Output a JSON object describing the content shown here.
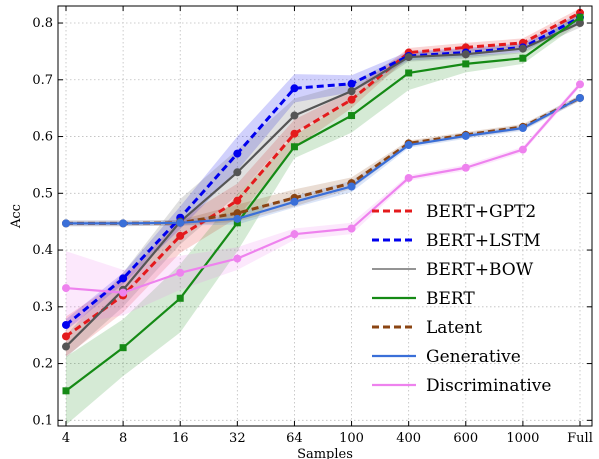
{
  "chart_data": {
    "type": "line",
    "xlabel": "Samples",
    "ylabel": "Acc",
    "categories": [
      "4",
      "8",
      "16",
      "32",
      "64",
      "100",
      "400",
      "600",
      "1000",
      "Full"
    ],
    "yticks": [
      0.1,
      0.2,
      0.3,
      0.4,
      0.5,
      0.6,
      0.7,
      0.8
    ],
    "ylim": [
      0.09,
      0.83
    ],
    "grid": true,
    "legend_position": "bottom-right",
    "series": [
      {
        "name": "BERT+GPT2",
        "color": "#e41a1c",
        "dash": "dashed",
        "marker": "circle",
        "values": [
          0.248,
          0.32,
          0.425,
          0.487,
          0.605,
          0.665,
          0.748,
          0.757,
          0.765,
          0.818
        ],
        "band": [
          0.035,
          0.03,
          0.03,
          0.03,
          0.025,
          0.015,
          0.008,
          0.008,
          0.008,
          0.008
        ]
      },
      {
        "name": "BERT+LSTM",
        "color": "#0000ee",
        "dash": "dashed",
        "marker": "circle",
        "values": [
          0.268,
          0.35,
          0.457,
          0.57,
          0.685,
          0.693,
          0.742,
          0.748,
          0.757,
          0.81
        ],
        "band": [
          0.01,
          0.01,
          0.02,
          0.03,
          0.025,
          0.015,
          0.008,
          0.008,
          0.008,
          0.008
        ]
      },
      {
        "name": "BERT+BOW",
        "color": "#555555",
        "dash": "solid",
        "marker": "circle",
        "values": [
          0.23,
          0.33,
          0.45,
          0.537,
          0.637,
          0.68,
          0.74,
          0.745,
          0.755,
          0.8
        ],
        "band": [
          0.02,
          0.03,
          0.04,
          0.04,
          0.03,
          0.015,
          0.008,
          0.008,
          0.008,
          0.008
        ]
      },
      {
        "name": "BERT",
        "color": "#158a15",
        "dash": "solid",
        "marker": "square",
        "values": [
          0.152,
          0.228,
          0.315,
          0.448,
          0.582,
          0.637,
          0.712,
          0.728,
          0.738,
          0.81
        ],
        "band": [
          0.06,
          0.05,
          0.06,
          0.05,
          0.02,
          0.03,
          0.03,
          0.015,
          0.01,
          0.01
        ]
      },
      {
        "name": "Latent",
        "color": "#8b4513",
        "dash": "dashed",
        "marker": "circle",
        "values": [
          0.447,
          0.447,
          0.448,
          0.465,
          0.492,
          0.518,
          0.588,
          0.603,
          0.617,
          0.668
        ],
        "band": [
          0.005,
          0.005,
          0.005,
          0.015,
          0.015,
          0.01,
          0.005,
          0.005,
          0.005,
          0.005
        ]
      },
      {
        "name": "Generative",
        "color": "#3a6fd8",
        "dash": "solid",
        "marker": "circle",
        "values": [
          0.447,
          0.447,
          0.448,
          0.455,
          0.485,
          0.512,
          0.585,
          0.601,
          0.615,
          0.668
        ],
        "band": [
          0.005,
          0.005,
          0.005,
          0.01,
          0.01,
          0.01,
          0.005,
          0.005,
          0.005,
          0.005
        ]
      },
      {
        "name": "Discriminative",
        "color": "#ee82ee",
        "dash": "solid",
        "marker": "circle",
        "values": [
          0.333,
          0.325,
          0.36,
          0.385,
          0.428,
          0.438,
          0.527,
          0.545,
          0.577,
          0.692
        ],
        "band": [
          0.065,
          0.04,
          0.03,
          0.02,
          0.01,
          0.01,
          0.005,
          0.005,
          0.005,
          0.005
        ]
      }
    ]
  }
}
